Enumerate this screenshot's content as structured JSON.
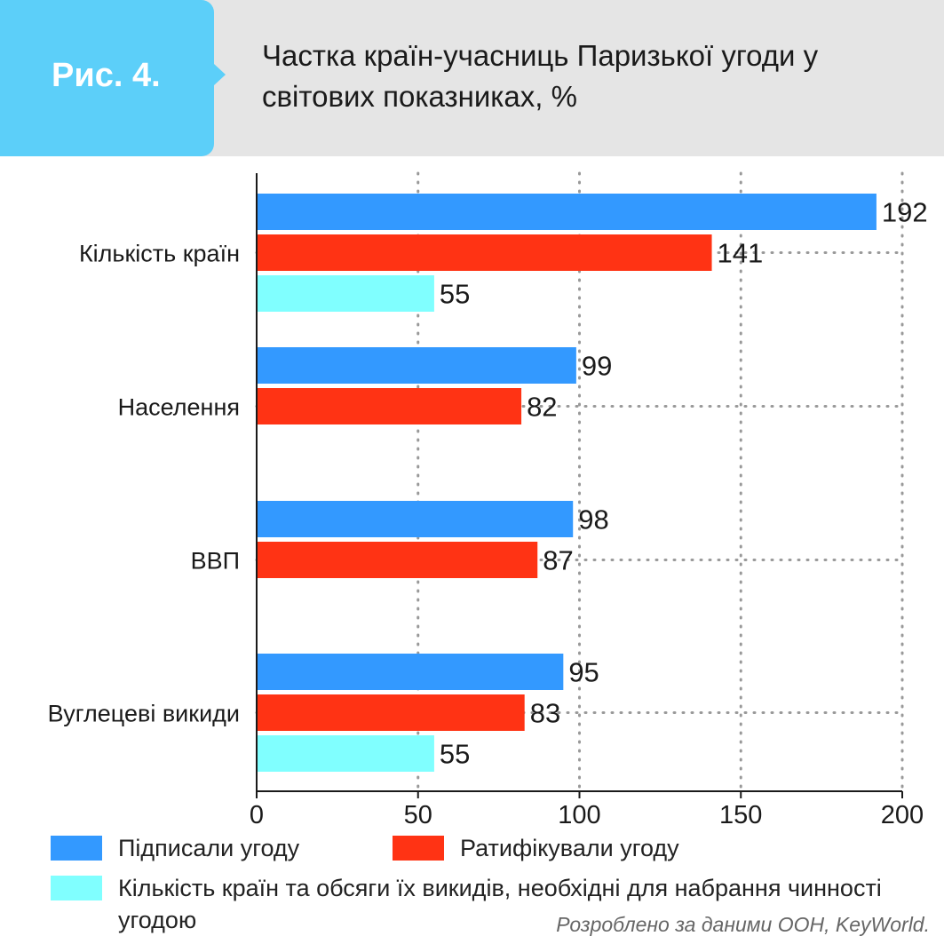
{
  "header": {
    "figure_label": "Рис. 4.",
    "title": "Частка країн-учасниць Паризької угоди у світових показниках, %"
  },
  "colors": {
    "signed": "#3399ff",
    "ratified": "#ff3314",
    "needed": "#80ffff",
    "header_bg": "#e5e5e5",
    "tab_bg": "#5ccff9"
  },
  "chart_data": {
    "type": "bar",
    "orientation": "horizontal",
    "title": "Частка країн-учасниць Паризької угоди у світових показниках, %",
    "categories": [
      "Кількість країн",
      "Населення",
      "ВВП",
      "Вуглецеві викиди"
    ],
    "series": [
      {
        "name": "Підписали угоду",
        "color": "#3399ff",
        "values": [
          192,
          99,
          98,
          95
        ]
      },
      {
        "name": "Ратифікували угоду",
        "color": "#ff3314",
        "values": [
          141,
          82,
          87,
          83
        ]
      },
      {
        "name": "Кількість країн та обсяги їх викидів, необхідні для набрання чинності угодою",
        "color": "#80ffff",
        "values": [
          55,
          null,
          null,
          55
        ]
      }
    ],
    "xlim": [
      0,
      200
    ],
    "xticks": [
      "0",
      "50",
      "100",
      "150",
      "200"
    ],
    "grid": true,
    "legend": "bottom"
  },
  "source": "Розроблено за даними ООН, KeyWorld."
}
